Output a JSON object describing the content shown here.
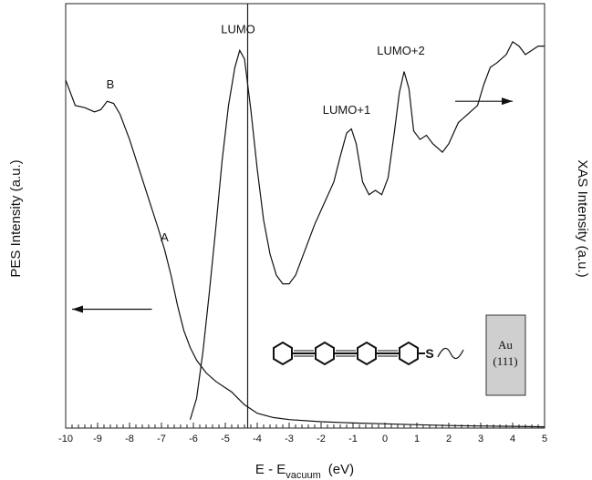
{
  "chart_data": {
    "type": "line",
    "xlabel_main": "E - E",
    "xlabel_sub": "vacuum",
    "xlabel_unit": "(eV)",
    "ylabel_left": "PES Intensity (a.u.)",
    "ylabel_right": "XAS Intensity (a.u.)",
    "xlim": [
      -10,
      5
    ],
    "ylim": [
      0,
      100
    ],
    "x_ticks": [
      -10,
      -9,
      -8,
      -7,
      -6,
      -5,
      -4,
      -3,
      -2,
      -1,
      0,
      1,
      2,
      3,
      4,
      5
    ],
    "x_tick_labels": [
      "-10",
      "-9",
      "-8",
      "-7",
      "-6",
      "-5",
      "-4",
      "-3",
      "-2",
      "-1",
      "0",
      "1",
      "2",
      "3",
      "4",
      "5"
    ],
    "vertical_line_x": -4.3,
    "series": [
      {
        "points": [
          [
            -10,
            82
          ],
          [
            -9.7,
            76
          ],
          [
            -9.4,
            75.5
          ],
          [
            -9.1,
            74.5
          ],
          [
            -8.9,
            75
          ],
          [
            -8.7,
            77
          ],
          [
            -8.5,
            76.5
          ],
          [
            -8.3,
            74
          ],
          [
            -8.0,
            68
          ],
          [
            -7.7,
            61
          ],
          [
            -7.4,
            54
          ],
          [
            -7.1,
            47
          ],
          [
            -6.9,
            42
          ],
          [
            -6.7,
            36
          ],
          [
            -6.5,
            29
          ],
          [
            -6.3,
            23
          ],
          [
            -6.1,
            19
          ],
          [
            -5.9,
            16
          ],
          [
            -5.6,
            13
          ],
          [
            -5.3,
            11
          ],
          [
            -5.0,
            9.5
          ],
          [
            -4.8,
            8.5
          ],
          [
            -4.6,
            7
          ],
          [
            -4.4,
            5.5
          ],
          [
            -4.2,
            4.5
          ],
          [
            -4.0,
            3.5
          ],
          [
            -3.5,
            2.5
          ],
          [
            -3.0,
            2
          ],
          [
            -2,
            1.5
          ],
          [
            -1,
            1.2
          ],
          [
            0,
            1
          ],
          [
            1,
            0.8
          ],
          [
            2,
            0.6
          ],
          [
            3,
            0.5
          ],
          [
            4,
            0.4
          ],
          [
            5,
            0.3
          ]
        ]
      },
      {
        "points": [
          [
            -6.1,
            2
          ],
          [
            -5.9,
            7
          ],
          [
            -5.7,
            18
          ],
          [
            -5.5,
            32
          ],
          [
            -5.3,
            47
          ],
          [
            -5.1,
            63
          ],
          [
            -4.9,
            76
          ],
          [
            -4.7,
            85
          ],
          [
            -4.55,
            89
          ],
          [
            -4.4,
            87
          ],
          [
            -4.2,
            75
          ],
          [
            -4.0,
            61
          ],
          [
            -3.8,
            49
          ],
          [
            -3.6,
            41
          ],
          [
            -3.4,
            36
          ],
          [
            -3.2,
            34
          ],
          [
            -3.0,
            34
          ],
          [
            -2.8,
            36
          ],
          [
            -2.5,
            42
          ],
          [
            -2.2,
            48
          ],
          [
            -1.9,
            53
          ],
          [
            -1.6,
            58
          ],
          [
            -1.4,
            64
          ],
          [
            -1.2,
            69.5
          ],
          [
            -1.05,
            70.5
          ],
          [
            -0.9,
            67
          ],
          [
            -0.7,
            58
          ],
          [
            -0.5,
            55
          ],
          [
            -0.3,
            56
          ],
          [
            -0.1,
            55
          ],
          [
            0.1,
            59
          ],
          [
            0.3,
            70
          ],
          [
            0.45,
            79
          ],
          [
            0.6,
            84
          ],
          [
            0.75,
            80
          ],
          [
            0.9,
            70
          ],
          [
            1.1,
            68
          ],
          [
            1.3,
            69
          ],
          [
            1.5,
            67
          ],
          [
            1.8,
            65
          ],
          [
            2.0,
            67
          ],
          [
            2.3,
            72
          ],
          [
            2.6,
            74
          ],
          [
            2.9,
            76
          ],
          [
            3.1,
            81
          ],
          [
            3.3,
            85
          ],
          [
            3.5,
            86
          ],
          [
            3.8,
            88
          ],
          [
            4.0,
            91
          ],
          [
            4.2,
            90
          ],
          [
            4.4,
            88
          ],
          [
            4.6,
            89
          ],
          [
            4.8,
            90
          ],
          [
            5.0,
            90
          ]
        ]
      }
    ],
    "annotations": [
      {
        "text": "B",
        "x": -8.6,
        "y": 80
      },
      {
        "text": "A",
        "x": -6.9,
        "y": 44
      },
      {
        "text": "LUMO",
        "x": -4.6,
        "y": 93
      },
      {
        "text": "LUMO+1",
        "x": -1.2,
        "y": 74
      },
      {
        "text": "LUMO+2",
        "x": 0.5,
        "y": 88
      }
    ],
    "arrow_left": {
      "x_start": -7.3,
      "x_end": -9.8,
      "y": 28
    },
    "arrow_right": {
      "x_start": 2.2,
      "x_end": 4.0,
      "y": 77
    },
    "inset": {
      "label_top": "Au",
      "label_bottom": "(111)",
      "atom": "S"
    }
  }
}
